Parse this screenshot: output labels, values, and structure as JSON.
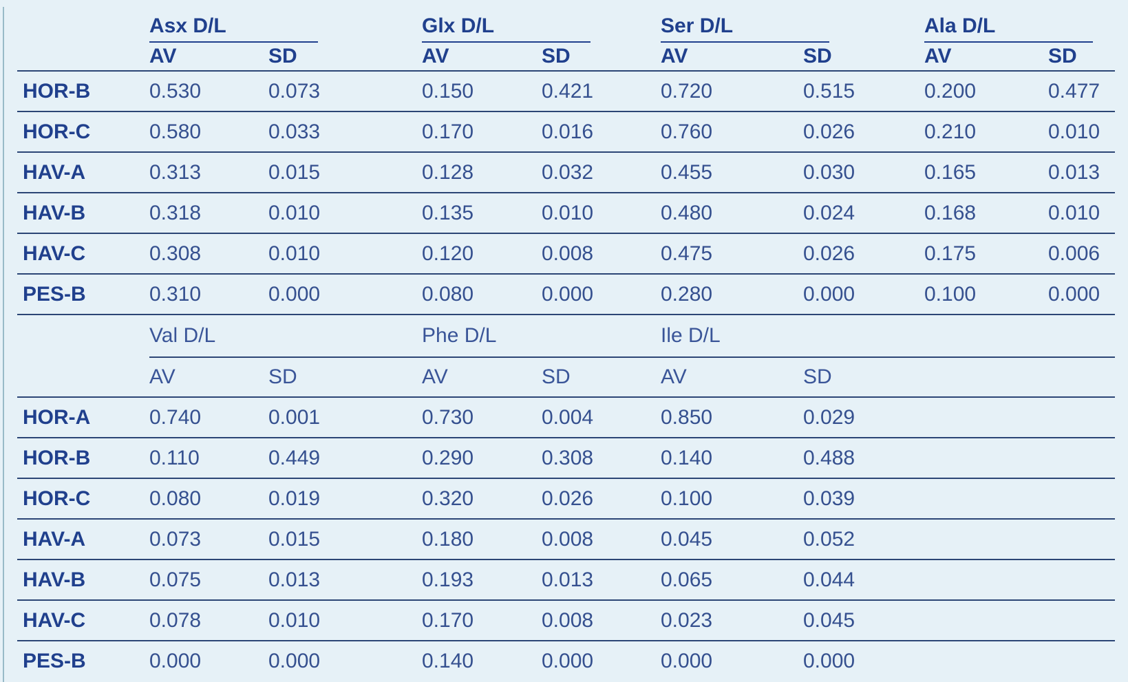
{
  "page": {
    "background_color": "#e6f1f7",
    "heading_text_color": "#20408d",
    "number_text_color": "#35508f",
    "rule_line_color": "#2b4575",
    "left_edge_rule_color": "#98bac8"
  },
  "table_top": {
    "groups": [
      "Asx D/L",
      "Glx D/L",
      "Ser D/L",
      "Ala D/L"
    ],
    "sub_headers": [
      "AV",
      "SD"
    ],
    "rows": [
      {
        "label": "HOR-B",
        "values": [
          "0.530",
          "0.073",
          "0.150",
          "0.421",
          "0.720",
          "0.515",
          "0.200",
          "0.477"
        ]
      },
      {
        "label": "HOR-C",
        "values": [
          "0.580",
          "0.033",
          "0.170",
          "0.016",
          "0.760",
          "0.026",
          "0.210",
          "0.010"
        ]
      },
      {
        "label": "HAV-A",
        "values": [
          "0.313",
          "0.015",
          "0.128",
          "0.032",
          "0.455",
          "0.030",
          "0.165",
          "0.013"
        ]
      },
      {
        "label": "HAV-B",
        "values": [
          "0.318",
          "0.010",
          "0.135",
          "0.010",
          "0.480",
          "0.024",
          "0.168",
          "0.010"
        ]
      },
      {
        "label": "HAV-C",
        "values": [
          "0.308",
          "0.010",
          "0.120",
          "0.008",
          "0.475",
          "0.026",
          "0.175",
          "0.006"
        ]
      },
      {
        "label": "PES-B",
        "values": [
          "0.310",
          "0.000",
          "0.080",
          "0.000",
          "0.280",
          "0.000",
          "0.100",
          "0.000"
        ]
      }
    ]
  },
  "table_bottom": {
    "groups": [
      "Val D/L",
      "Phe D/L",
      "Ile D/L"
    ],
    "sub_headers": [
      "AV",
      "SD"
    ],
    "rows": [
      {
        "label": "HOR-A",
        "values": [
          "0.740",
          "0.001",
          "0.730",
          "0.004",
          "0.850",
          "0.029"
        ]
      },
      {
        "label": "HOR-B",
        "values": [
          "0.110",
          "0.449",
          "0.290",
          "0.308",
          "0.140",
          "0.488"
        ]
      },
      {
        "label": "HOR-C",
        "values": [
          "0.080",
          "0.019",
          "0.320",
          "0.026",
          "0.100",
          "0.039"
        ]
      },
      {
        "label": "HAV-A",
        "values": [
          "0.073",
          "0.015",
          "0.180",
          "0.008",
          "0.045",
          "0.052"
        ]
      },
      {
        "label": "HAV-B",
        "values": [
          "0.075",
          "0.013",
          "0.193",
          "0.013",
          "0.065",
          "0.044"
        ]
      },
      {
        "label": "HAV-C",
        "values": [
          "0.078",
          "0.010",
          "0.170",
          "0.008",
          "0.023",
          "0.045"
        ]
      },
      {
        "label": "PES-B",
        "values": [
          "0.000",
          "0.000",
          "0.140",
          "0.000",
          "0.000",
          "0.000"
        ]
      }
    ]
  }
}
